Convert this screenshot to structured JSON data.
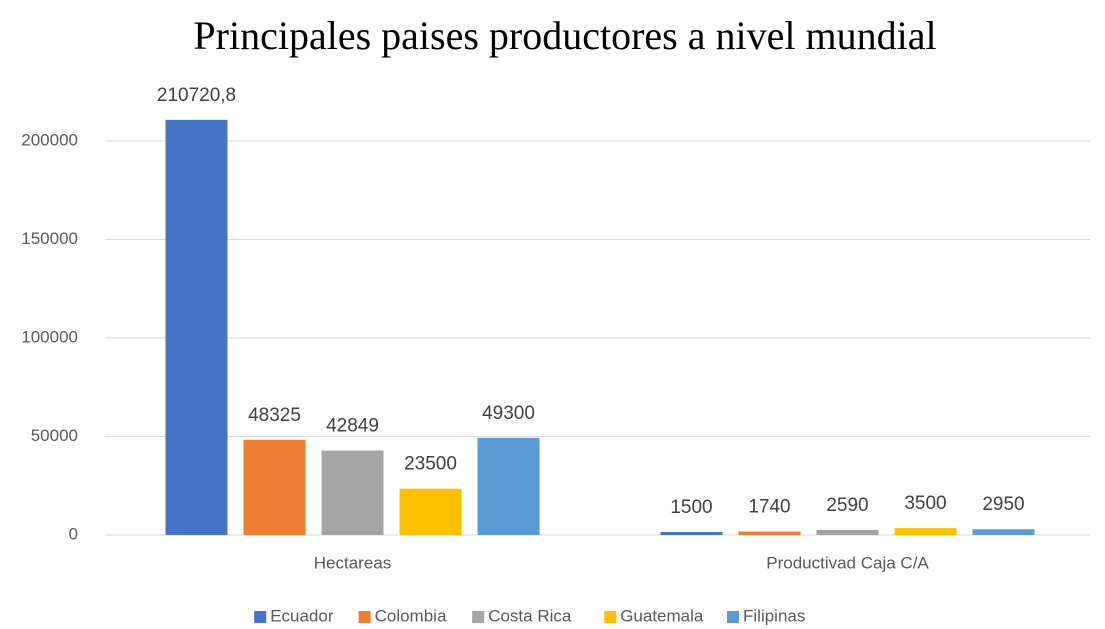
{
  "chart_data": {
    "type": "bar",
    "title": "Principales paises productores a nivel mundial",
    "categories": [
      "Hectareas",
      "Productivad Caja C/A"
    ],
    "series": [
      {
        "name": "Ecuador",
        "color": "#4472c4",
        "values": [
          210720.8,
          1500
        ],
        "value_labels": [
          "210720,8",
          "1500"
        ]
      },
      {
        "name": "Colombia",
        "color": "#ed7d31",
        "values": [
          48325,
          1740
        ]
      },
      {
        "name": "Costa Rica",
        "color": "#a5a5a5",
        "values": [
          42849,
          2590
        ]
      },
      {
        "name": "Guatemala",
        "color": "#ffc000",
        "values": [
          23500,
          3500
        ]
      },
      {
        "name": "Filipinas",
        "color": "#5b9bd5",
        "values": [
          49300,
          2950
        ]
      }
    ],
    "ylim": [
      0,
      200000
    ],
    "yticks": [
      0,
      50000,
      100000,
      150000,
      200000
    ],
    "grid": true,
    "legend": "bottom"
  }
}
